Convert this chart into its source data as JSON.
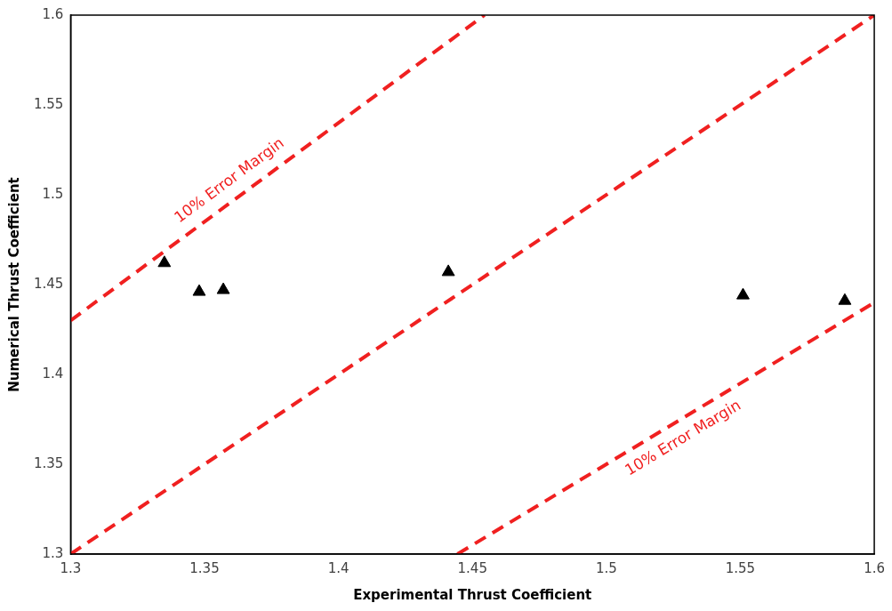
{
  "chart_data": {
    "type": "scatter",
    "xlabel": "Experimental Thrust Coefficient",
    "ylabel": "Numerical Thrust Coefficient",
    "xlim": [
      1.3,
      1.6
    ],
    "ylim": [
      1.3,
      1.6
    ],
    "xticks": [
      1.3,
      1.35,
      1.4,
      1.45,
      1.5,
      1.55,
      1.6
    ],
    "yticks": [
      1.3,
      1.35,
      1.4,
      1.45,
      1.5,
      1.55,
      1.6
    ],
    "grid": false,
    "legend": false,
    "marker": "triangle",
    "x": [
      1.335,
      1.348,
      1.357,
      1.441,
      1.551,
      1.589
    ],
    "series": [
      {
        "type": "scatter",
        "color": "#000000",
        "values": [
          1.462,
          1.446,
          1.447,
          1.457,
          1.444,
          1.441
        ]
      },
      {
        "type": "line",
        "color": "#f02020",
        "line_style": "dashed",
        "marker": "none",
        "x": [
          1.3,
          1.4545
        ],
        "values": [
          1.43,
          1.6
        ]
      },
      {
        "type": "line",
        "color": "#f02020",
        "line_style": "dashed",
        "marker": "none",
        "x": [
          1.3,
          1.6
        ],
        "values": [
          1.3,
          1.6
        ]
      },
      {
        "type": "line",
        "color": "#f02020",
        "line_style": "dashed",
        "marker": "none",
        "x": [
          1.4444,
          1.6
        ],
        "values": [
          1.3,
          1.44
        ]
      }
    ],
    "annotations": [
      "10% Error Margin",
      "10% Error Margin"
    ]
  }
}
